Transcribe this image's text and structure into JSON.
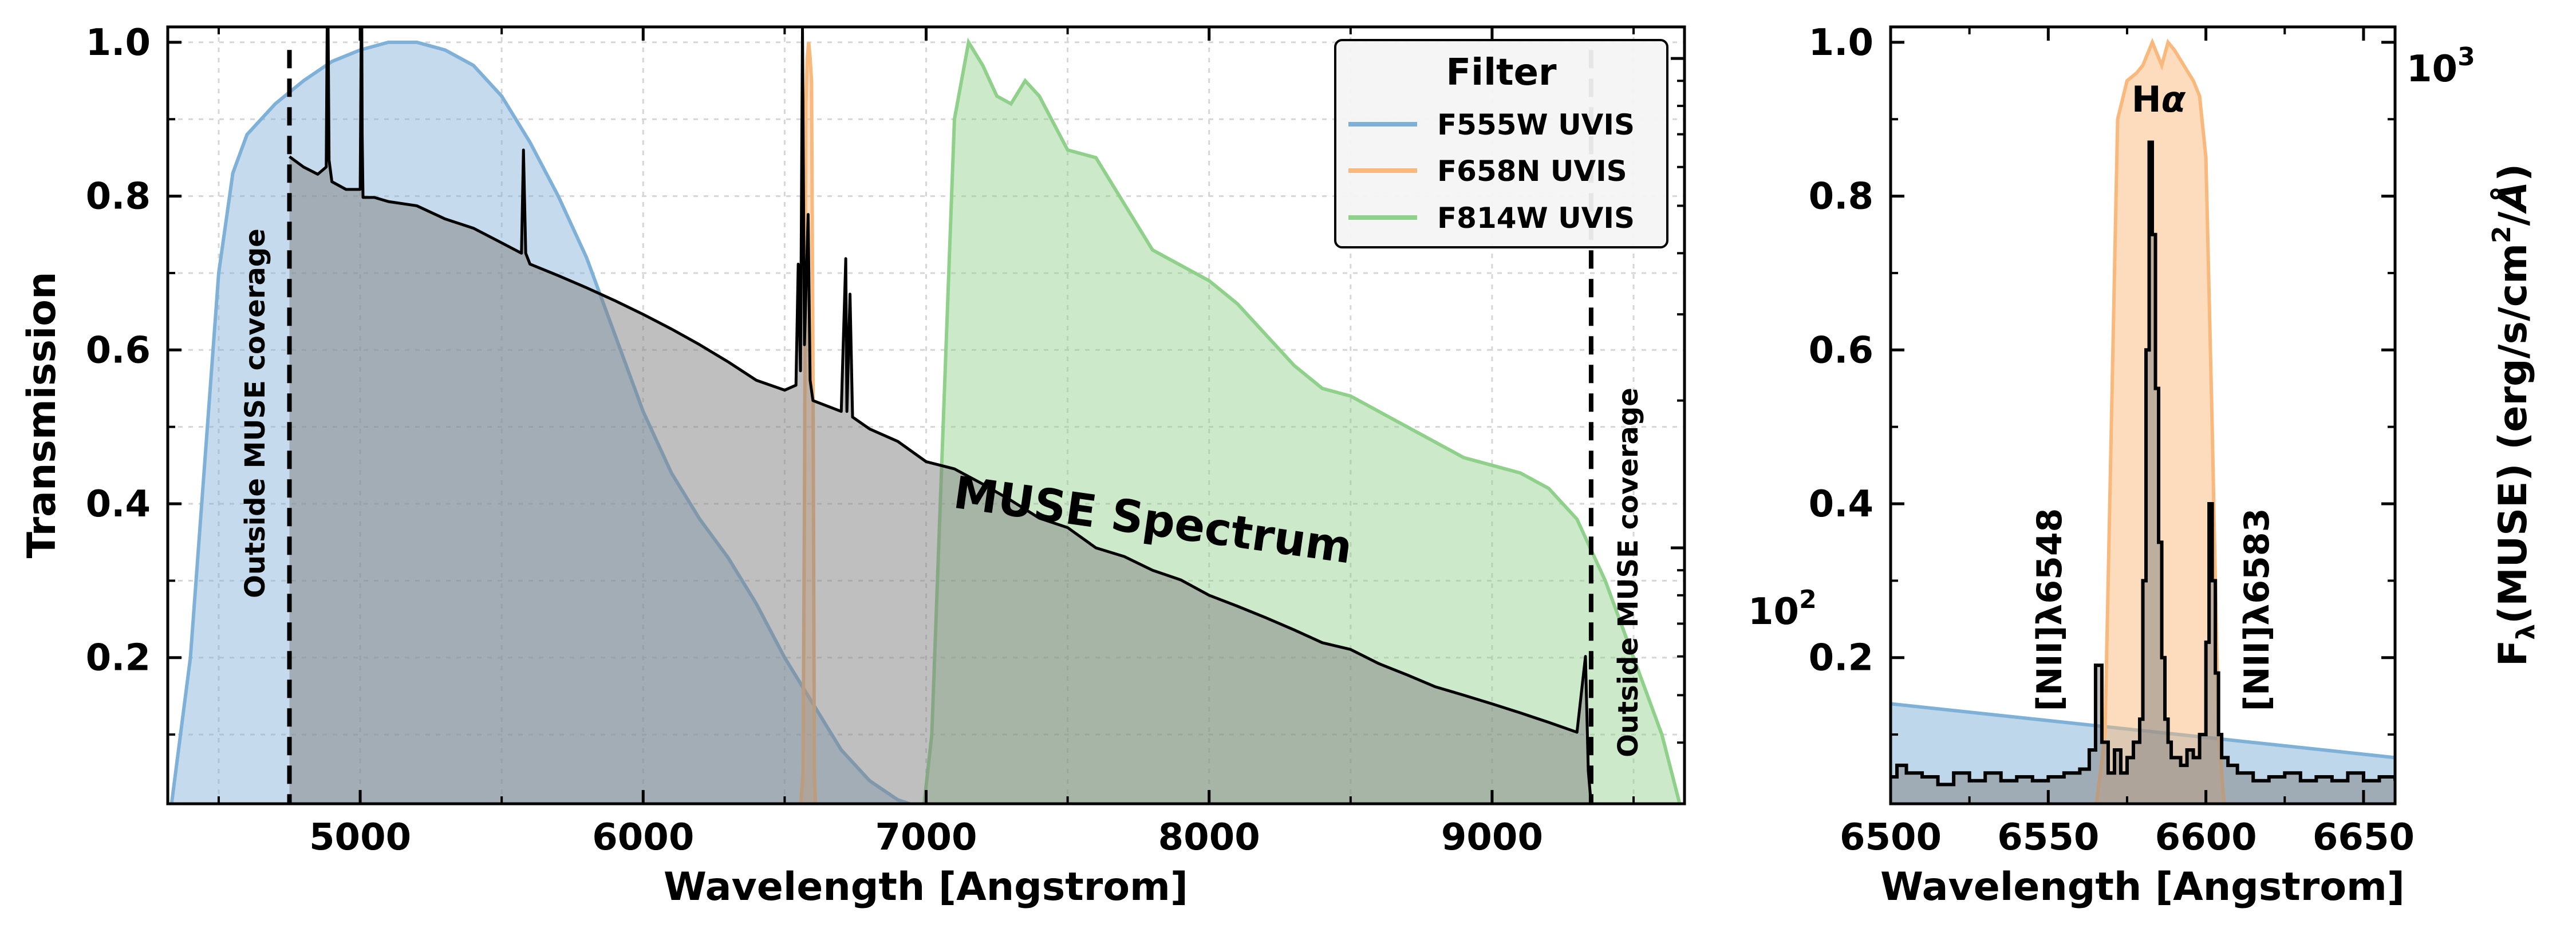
{
  "chart_data": [
    {
      "type": "area",
      "xlabel": "Wavelength [Angstrom]",
      "ylabel": "Transmission",
      "y2label": "F$_\\lambda$(MUSE) (erg/s/cm$^2$/$\\AA$)",
      "xlim": [
        4320,
        9680
      ],
      "ylim": [
        0.01,
        1.02
      ],
      "xticks": [
        "5000",
        "6000",
        "7000",
        "8000",
        "9000"
      ],
      "yticks": [
        "0.2",
        "0.4",
        "0.6",
        "0.8",
        "1.0"
      ],
      "y2scale": "log",
      "y2lim": [
        30,
        1160
      ],
      "y2ticks": [
        "10",
        "10"
      ],
      "y2tick_exponents": [
        "2",
        "3"
      ],
      "grid": true,
      "legend": {
        "title": "Filter",
        "placement": "top-right",
        "entries": [
          "F555W UVIS",
          "F658N UVIS",
          "F814W UVIS"
        ]
      },
      "series": [
        {
          "name": "F555W UVIS",
          "color": "#7fb0d8",
          "x": [
            4330,
            4400,
            4450,
            4500,
            4550,
            4600,
            4700,
            4800,
            4900,
            5000,
            5100,
            5200,
            5300,
            5400,
            5500,
            5600,
            5700,
            5800,
            5900,
            6000,
            6100,
            6200,
            6300,
            6400,
            6500,
            6600,
            6700,
            6800,
            6900,
            7000,
            7050
          ],
          "values": [
            0.0,
            0.2,
            0.45,
            0.7,
            0.83,
            0.88,
            0.92,
            0.95,
            0.975,
            0.99,
            1.0,
            1.0,
            0.99,
            0.97,
            0.93,
            0.87,
            0.8,
            0.72,
            0.62,
            0.52,
            0.44,
            0.38,
            0.33,
            0.27,
            0.2,
            0.14,
            0.08,
            0.04,
            0.015,
            0.003,
            0.0
          ]
        },
        {
          "name": "F658N UVIS",
          "color": "#f9b97c",
          "x": [
            6555,
            6565,
            6570,
            6575,
            6580,
            6585,
            6590,
            6595,
            6600,
            6605,
            6610
          ],
          "values": [
            0.0,
            0.05,
            0.4,
            0.92,
            0.98,
            1.0,
            0.98,
            0.95,
            0.6,
            0.05,
            0.0
          ]
        },
        {
          "name": "F814W UVIS",
          "color": "#8fd08a",
          "x": [
            6990,
            7020,
            7060,
            7100,
            7150,
            7200,
            7250,
            7300,
            7350,
            7400,
            7500,
            7600,
            7700,
            7800,
            7900,
            8000,
            8100,
            8200,
            8300,
            8400,
            8500,
            8600,
            8700,
            8800,
            8900,
            9000,
            9100,
            9200,
            9300,
            9400,
            9500,
            9600,
            9670
          ],
          "values": [
            0.0,
            0.1,
            0.5,
            0.9,
            1.0,
            0.97,
            0.93,
            0.92,
            0.95,
            0.93,
            0.86,
            0.85,
            0.79,
            0.73,
            0.71,
            0.69,
            0.66,
            0.62,
            0.58,
            0.55,
            0.54,
            0.52,
            0.5,
            0.48,
            0.46,
            0.45,
            0.44,
            0.42,
            0.38,
            0.3,
            0.2,
            0.1,
            0.0
          ]
        },
        {
          "name": "MUSE Spectrum",
          "color": "#000000",
          "x": [
            4750,
            4800,
            4850,
            4880,
            4885,
            4890,
            4900,
            4950,
            5000,
            5005,
            5007,
            5010,
            5050,
            5100,
            5200,
            5300,
            5400,
            5500,
            5570,
            5577,
            5585,
            5600,
            5700,
            5800,
            5900,
            6000,
            6100,
            6200,
            6300,
            6400,
            6500,
            6540,
            6548,
            6556,
            6563,
            6570,
            6583,
            6590,
            6600,
            6700,
            6716,
            6720,
            6731,
            6740,
            6800,
            6900,
            7000,
            7100,
            7200,
            7300,
            7400,
            7500,
            7600,
            7700,
            7800,
            7900,
            8000,
            8100,
            8200,
            8300,
            8400,
            8500,
            8600,
            8700,
            8800,
            8900,
            9000,
            9100,
            9200,
            9300,
            9330,
            9340,
            9350
          ],
          "values": [
            630,
            600,
            580,
            600,
            1600,
            620,
            560,
            540,
            540,
            1500,
            700,
            520,
            520,
            510,
            500,
            470,
            450,
            420,
            400,
            650,
            400,
            380,
            360,
            340,
            320,
            300,
            280,
            260,
            240,
            220,
            210,
            215,
            380,
            230,
            1150,
            260,
            480,
            220,
            200,
            190,
            390,
            190,
            330,
            185,
            175,
            165,
            150,
            145,
            135,
            125,
            115,
            110,
            100,
            96,
            90,
            86,
            80,
            76,
            72,
            68,
            64,
            62,
            58,
            55,
            52,
            50,
            48,
            46,
            44,
            42,
            60,
            35,
            30
          ]
        }
      ],
      "annotations": [
        {
          "text": "MUSE Spectrum",
          "x": 7700,
          "y": 0.36
        },
        {
          "text": "Outside MUSE coverage",
          "x": 4650,
          "y": 0.37
        },
        {
          "text": "Outside MUSE coverage",
          "x": 9450,
          "y": 0.26
        }
      ],
      "vlines": [
        4750,
        9350
      ]
    },
    {
      "type": "area",
      "xlabel": "Wavelength [Angstrom]",
      "ylabel": "",
      "y2label": "F$_\\lambda$(MUSE) (erg/s/cm$^2$/$\\AA$)",
      "xlim": [
        6500,
        6660
      ],
      "ylim": [
        0.01,
        1.02
      ],
      "xticks": [
        "6500",
        "6550",
        "6600",
        "6650"
      ],
      "yticks": [
        "0.2",
        "0.4",
        "0.6",
        "0.8",
        "1.0"
      ],
      "grid": false,
      "series": [
        {
          "name": "F555W UVIS",
          "color": "#7fb0d8",
          "x": [
            6500,
            6660
          ],
          "values": [
            0.14,
            0.07
          ]
        },
        {
          "name": "F658N UVIS",
          "color": "#f9b97c",
          "x": [
            6565,
            6568,
            6570,
            6572,
            6575,
            6578,
            6580,
            6583,
            6586,
            6588,
            6590,
            6593,
            6596,
            6598,
            6600,
            6602,
            6604,
            6606
          ],
          "values": [
            0.0,
            0.1,
            0.5,
            0.9,
            0.95,
            0.96,
            0.97,
            1.0,
            0.97,
            1.0,
            0.99,
            0.97,
            0.95,
            0.93,
            0.85,
            0.5,
            0.1,
            0.0
          ]
        },
        {
          "name": "MUSE Spectrum",
          "color": "#000000",
          "x": [
            6500,
            6502,
            6505,
            6510,
            6515,
            6520,
            6525,
            6530,
            6535,
            6540,
            6545,
            6550,
            6555,
            6560,
            6563,
            6565,
            6567,
            6569,
            6571,
            6573,
            6575,
            6577,
            6579,
            6580,
            6581,
            6582,
            6583,
            6584,
            6585,
            6586,
            6587,
            6588,
            6589,
            6590,
            6592,
            6594,
            6596,
            6598,
            6600,
            6601,
            6602,
            6603,
            6604,
            6605,
            6607,
            6610,
            6615,
            6620,
            6625,
            6630,
            6635,
            6640,
            6645,
            6650,
            6655,
            6660
          ],
          "values": [
            0.045,
            0.06,
            0.05,
            0.045,
            0.035,
            0.05,
            0.04,
            0.05,
            0.04,
            0.045,
            0.04,
            0.045,
            0.05,
            0.055,
            0.08,
            0.19,
            0.09,
            0.05,
            0.08,
            0.05,
            0.07,
            0.09,
            0.12,
            0.3,
            0.6,
            0.87,
            0.75,
            0.55,
            0.35,
            0.2,
            0.12,
            0.09,
            0.07,
            0.07,
            0.06,
            0.08,
            0.07,
            0.1,
            0.22,
            0.4,
            0.3,
            0.18,
            0.1,
            0.07,
            0.06,
            0.05,
            0.04,
            0.045,
            0.05,
            0.04,
            0.045,
            0.04,
            0.05,
            0.04,
            0.045,
            0.04
          ]
        }
      ],
      "annotations": [
        {
          "text": "H$\\alpha$",
          "x": 6584,
          "y": 0.91
        },
        {
          "text": "[NII]$\\lambda$6548",
          "x": 6558,
          "y": 0.26
        },
        {
          "text": "[NII]$\\lambda$6583",
          "x": 6615,
          "y": 0.26
        }
      ]
    }
  ]
}
